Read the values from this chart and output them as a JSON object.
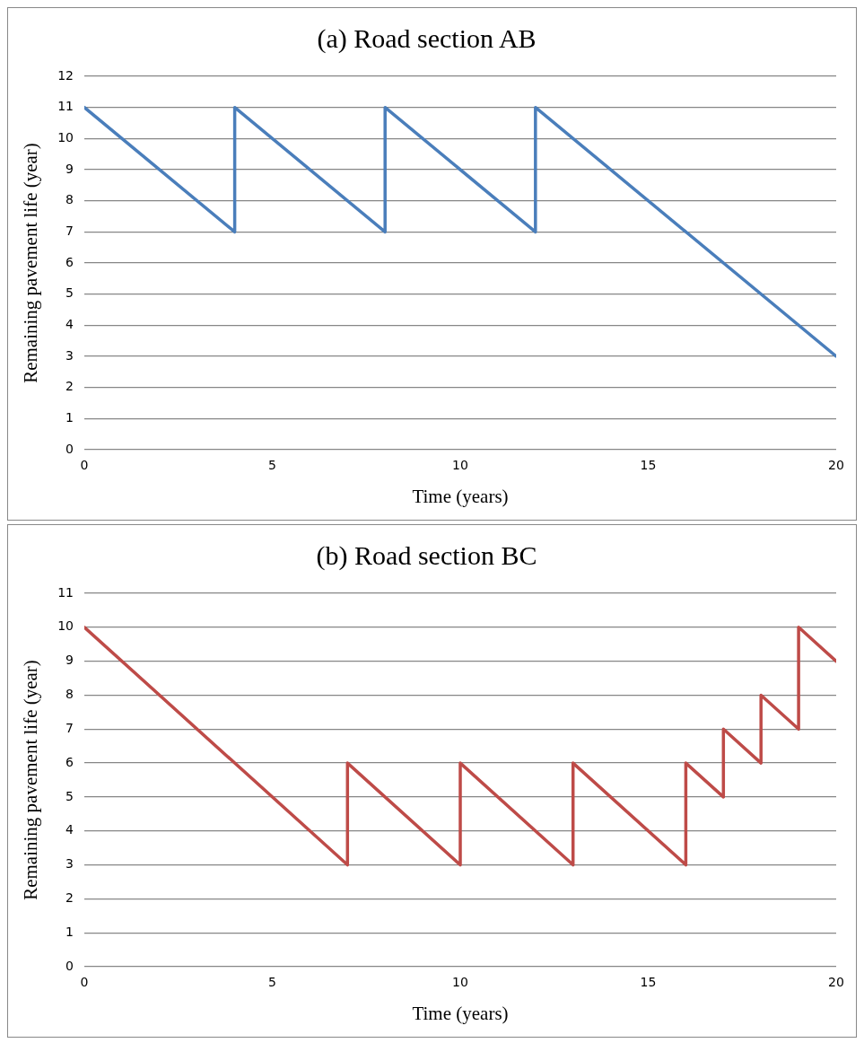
{
  "chart_data": [
    {
      "type": "line",
      "title": "(a) Road section AB",
      "xlabel": "Time (years)",
      "ylabel": "Remaining pavement life (year)",
      "xlim": [
        0,
        20
      ],
      "xticks": [
        0,
        5,
        10,
        15,
        20
      ],
      "ylim": [
        0,
        12
      ],
      "yticks": [
        0,
        1,
        2,
        3,
        4,
        5,
        6,
        7,
        8,
        9,
        10,
        11,
        12
      ],
      "grid": "y",
      "legend": false,
      "marker": "none",
      "line_style": "solid",
      "series": [
        {
          "color": "#4a7ebb",
          "x": [
            0,
            4,
            4,
            8,
            8,
            12,
            12,
            20
          ],
          "values": [
            11,
            7,
            11,
            7,
            11,
            7,
            11,
            3
          ]
        }
      ]
    },
    {
      "type": "line",
      "title": "(b) Road section BC",
      "xlabel": "Time (years)",
      "ylabel": "Remaining pavement life (year)",
      "xlim": [
        0,
        20
      ],
      "xticks": [
        0,
        5,
        10,
        15,
        20
      ],
      "ylim": [
        0,
        11
      ],
      "yticks": [
        0,
        1,
        2,
        3,
        4,
        5,
        6,
        7,
        8,
        9,
        10,
        11
      ],
      "grid": "y",
      "legend": false,
      "marker": "none",
      "line_style": "solid",
      "series": [
        {
          "color": "#be4b48",
          "x": [
            0,
            7,
            7,
            10,
            10,
            13,
            13,
            16,
            16,
            17,
            17,
            18,
            18,
            19,
            19,
            20
          ],
          "values": [
            10,
            3,
            6,
            3,
            6,
            3,
            6,
            3,
            6,
            5,
            7,
            6,
            8,
            7,
            10,
            9
          ]
        }
      ]
    }
  ]
}
